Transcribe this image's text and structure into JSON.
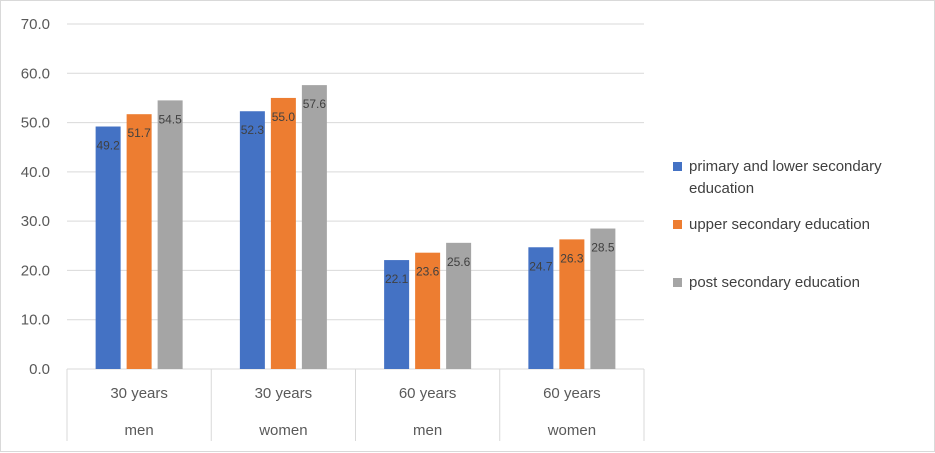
{
  "chart_data": {
    "type": "bar",
    "categories": [
      {
        "top": "30 years",
        "bottom": "men"
      },
      {
        "top": "30 years",
        "bottom": "women"
      },
      {
        "top": "60 years",
        "bottom": "men"
      },
      {
        "top": "60 years",
        "bottom": "women"
      }
    ],
    "series": [
      {
        "name": "primary and lower secondary education",
        "color": "#4472c4",
        "values": [
          49.2,
          52.3,
          22.1,
          24.7
        ],
        "labels": [
          "49.2",
          "52.3",
          "22.1",
          "24.7"
        ]
      },
      {
        "name": "upper secondary education",
        "color": "#ed7d31",
        "values": [
          51.7,
          55.0,
          23.6,
          26.3
        ],
        "labels": [
          "51.7",
          "55.0",
          "23.6",
          "26.3"
        ]
      },
      {
        "name": "post secondary education",
        "color": "#a5a5a5",
        "values": [
          54.5,
          57.6,
          25.6,
          28.5
        ],
        "labels": [
          "54.5",
          "57.6",
          "25.6",
          "28.5"
        ]
      }
    ],
    "yticks": [
      "0.0",
      "10.0",
      "20.0",
      "30.0",
      "40.0",
      "50.0",
      "60.0",
      "70.0"
    ],
    "ylim": [
      0,
      70
    ],
    "grid": true,
    "legend_position": "right"
  }
}
